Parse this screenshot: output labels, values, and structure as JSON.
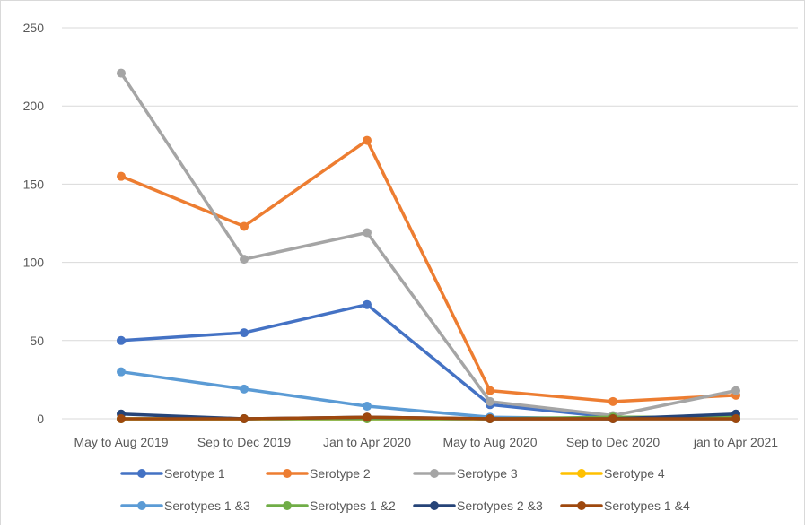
{
  "chart_data": {
    "type": "line",
    "categories": [
      "May to Aug 2019",
      "Sep to Dec 2019",
      "Jan to Apr 2020",
      "May to Aug 2020",
      "Sep to Dec 2020",
      "jan to Apr 2021"
    ],
    "ylim": [
      0,
      250
    ],
    "yticks": [
      0,
      50,
      100,
      150,
      200,
      250
    ],
    "grid": true,
    "legend_position": "bottom",
    "series": [
      {
        "name": "Serotype 1",
        "color": "#4472C4",
        "values": [
          50,
          55,
          73,
          9,
          1,
          1
        ]
      },
      {
        "name": "Serotype 2",
        "color": "#ED7D31",
        "values": [
          155,
          123,
          178,
          18,
          11,
          15
        ]
      },
      {
        "name": "Serotype 3",
        "color": "#A5A5A5",
        "values": [
          221,
          102,
          119,
          11,
          2,
          18
        ]
      },
      {
        "name": "Serotype 4",
        "color": "#FFC000",
        "values": [
          0,
          0,
          0,
          0,
          0,
          0
        ]
      },
      {
        "name": "Serotypes 1 &3",
        "color": "#5B9BD5",
        "values": [
          30,
          19,
          8,
          1,
          0,
          0
        ]
      },
      {
        "name": "Serotypes 1 &2",
        "color": "#70AD47",
        "values": [
          0,
          0,
          0,
          0,
          1,
          1
        ]
      },
      {
        "name": "Serotypes 2 &3",
        "color": "#264478",
        "values": [
          3,
          0,
          1,
          0,
          0,
          3
        ]
      },
      {
        "name": "Serotypes 1 &4",
        "color": "#9E480E",
        "values": [
          0,
          0,
          1,
          0,
          0,
          0
        ]
      }
    ]
  }
}
